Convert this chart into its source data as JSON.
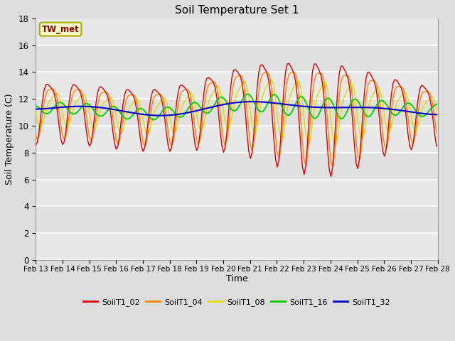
{
  "title": "Soil Temperature Set 1",
  "xlabel": "Time",
  "ylabel": "Soil Temperature (C)",
  "ylim": [
    0,
    18
  ],
  "yticks": [
    0,
    2,
    4,
    6,
    8,
    10,
    12,
    14,
    16,
    18
  ],
  "xtick_labels": [
    "Feb 13",
    "Feb 14",
    "Feb 15",
    "Feb 16",
    "Feb 17",
    "Feb 18",
    "Feb 19",
    "Feb 20",
    "Feb 21",
    "Feb 22",
    "Feb 23",
    "Feb 24",
    "Feb 25",
    "Feb 26",
    "Feb 27",
    "Feb 28"
  ],
  "annotation_text": "TW_met",
  "annotation_box_color": "#ffffcc",
  "annotation_text_color": "#880000",
  "line_colors": {
    "SoilT1_02": "#dd0000",
    "SoilT1_04": "#ff8800",
    "SoilT1_08": "#dddd00",
    "SoilT1_16": "#00cc00",
    "SoilT1_32": "#0000cc"
  },
  "fig_bg_color": "#dddddd",
  "plot_bg_color": "#e8e8e8",
  "grid_color": "#ffffff"
}
